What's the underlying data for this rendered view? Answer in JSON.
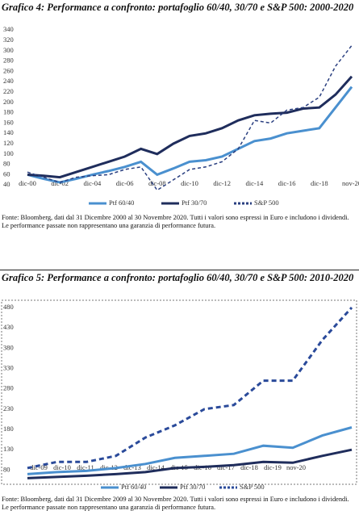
{
  "chart_data": [
    {
      "type": "line",
      "title": "Grafico 4: Performance a confronto: portafoglio 60/40, 30/70 e S&P 500: 2000-2020",
      "note": "Fonte: Bloomberg, dati dal 31 Dicembre 2000 al 30 Novembre 2020. Tutti i valori sono espressi in Euro e includono i dividendi. Le performance passate non rappresentano una garanzia di performance futura.",
      "categories": [
        "dic-00",
        null,
        "dic-02",
        null,
        "dic-04",
        null,
        "dic-06",
        null,
        "dic-08",
        null,
        "dic-10",
        null,
        "dic-12",
        null,
        "dic-14",
        null,
        "dic-16",
        null,
        "dic-18",
        null,
        "nov-20"
      ],
      "series": [
        {
          "name": "Ptf 60/40",
          "color": "#4a90cf",
          "dash": false,
          "values": [
            60,
            52,
            45,
            52,
            60,
            67,
            75,
            85,
            60,
            72,
            85,
            88,
            95,
            110,
            125,
            130,
            140,
            145,
            150,
            190,
            230
          ]
        },
        {
          "name": "Ptf 30/70",
          "color": "#1f2d5c",
          "dash": false,
          "values": [
            60,
            58,
            55,
            65,
            75,
            85,
            95,
            110,
            100,
            120,
            135,
            140,
            150,
            165,
            175,
            178,
            180,
            188,
            190,
            215,
            250
          ]
        },
        {
          "name": "S&P 500",
          "color": "#2a3f80",
          "dash": true,
          "values": [
            65,
            55,
            45,
            55,
            58,
            60,
            70,
            75,
            30,
            50,
            70,
            75,
            85,
            110,
            165,
            160,
            185,
            190,
            210,
            270,
            310
          ]
        }
      ],
      "ylim": [
        20,
        345
      ],
      "yticks": [
        40,
        60,
        80,
        100,
        120,
        140,
        160,
        180,
        200,
        220,
        240,
        260,
        280,
        300,
        320,
        340
      ]
    },
    {
      "type": "line",
      "title": "Grafico 5: Performance a confronto: portafoglio 60/40, 30/70 e S&P 500: 2010-2020",
      "note": "Fonte: Bloomberg, dati dal 31 Dicembre 2009 al 30 Novembre 2020. Tutti i valori sono espressi in Euro e includono i dividendi. Le performance passate non rappresentano una garanzia di performance futura.",
      "categories": [
        "dic-09",
        "dic-10",
        "dic-11",
        "dic-12",
        "dic-13",
        "dic-14",
        "dic-15",
        "dic-16",
        "dic-17",
        "dic-18",
        "dic-19",
        "nov-20"
      ],
      "series": [
        {
          "name": "Ptf 60/40",
          "color": "#4a90cf",
          "dash": false,
          "values": [
            70,
            75,
            78,
            85,
            95,
            110,
            115,
            120,
            140,
            135,
            165,
            185
          ]
        },
        {
          "name": "Ptf 30/70",
          "color": "#1f2d5c",
          "dash": false,
          "values": [
            60,
            63,
            66,
            70,
            75,
            85,
            88,
            92,
            100,
            98,
            115,
            130
          ]
        },
        {
          "name": "S&P 500",
          "color": "#2a4a9a",
          "dash": true,
          "values": [
            85,
            100,
            100,
            115,
            160,
            190,
            230,
            240,
            300,
            300,
            400,
            480
          ]
        }
      ],
      "ylim": [
        45,
        490
      ],
      "yticks": [
        80,
        130,
        180,
        230,
        280,
        330,
        380,
        430,
        480
      ]
    }
  ]
}
